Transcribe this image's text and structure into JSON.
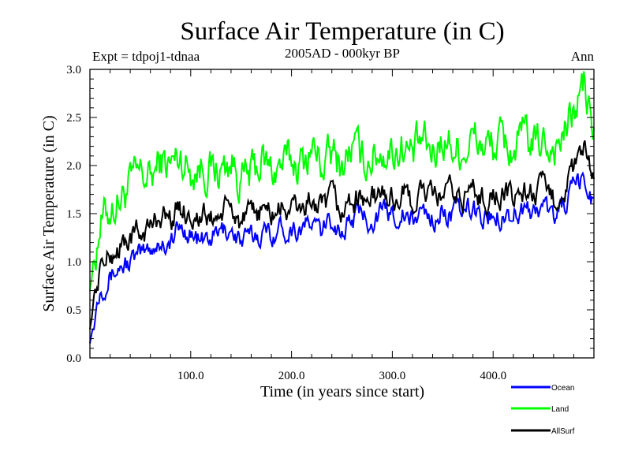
{
  "chart_data": {
    "type": "line",
    "title": "Surface Air Temperature (in C)",
    "subtitle": "2005AD - 000kyr BP",
    "annotation_left": "Expt = tdpoj1-tdnaa",
    "annotation_right": "Ann",
    "xlabel": "Time (in years since start)",
    "ylabel": "Surface Air Temperature (in C)",
    "xlim": [
      0,
      500
    ],
    "ylim": [
      0.0,
      3.0
    ],
    "x_ticks": [
      100,
      200,
      300,
      400
    ],
    "x_tick_labels": [
      "100.0",
      "200.0",
      "300.0",
      "400.0"
    ],
    "y_ticks": [
      0.0,
      0.5,
      1.0,
      1.5,
      2.0,
      2.5,
      3.0
    ],
    "y_tick_labels": [
      "0.0",
      "0.5",
      "1.0",
      "1.5",
      "2.0",
      "2.5",
      "3.0"
    ],
    "grid": false,
    "legend_position": "bottom-right-outside",
    "x": [
      0,
      10,
      20,
      30,
      40,
      50,
      60,
      70,
      80,
      90,
      100,
      110,
      120,
      130,
      140,
      150,
      160,
      170,
      180,
      190,
      200,
      210,
      220,
      230,
      240,
      250,
      260,
      270,
      280,
      290,
      300,
      310,
      320,
      330,
      340,
      350,
      360,
      370,
      380,
      390,
      400,
      410,
      420,
      430,
      440,
      450,
      460,
      470,
      480,
      490,
      500
    ],
    "series": [
      {
        "name": "Ocean",
        "color": "#0000ff",
        "values": [
          0.15,
          0.75,
          0.85,
          0.95,
          1.0,
          1.05,
          1.15,
          1.2,
          1.2,
          1.35,
          1.3,
          1.2,
          1.25,
          1.3,
          1.35,
          1.2,
          1.25,
          1.3,
          1.3,
          1.35,
          1.35,
          1.35,
          1.4,
          1.3,
          1.45,
          1.3,
          1.45,
          1.5,
          1.45,
          1.5,
          1.5,
          1.5,
          1.4,
          1.55,
          1.45,
          1.5,
          1.5,
          1.5,
          1.55,
          1.45,
          1.5,
          1.5,
          1.5,
          1.55,
          1.5,
          1.6,
          1.45,
          1.6,
          1.75,
          1.85,
          1.6
        ]
      },
      {
        "name": "Land",
        "color": "#00ff00",
        "values": [
          0.7,
          1.4,
          1.55,
          1.65,
          1.8,
          1.9,
          1.85,
          2.05,
          2.0,
          2.1,
          1.95,
          2.0,
          1.95,
          1.95,
          2.05,
          1.85,
          1.9,
          2.05,
          1.95,
          2.0,
          2.05,
          2.0,
          2.2,
          2.0,
          2.1,
          2.0,
          2.2,
          2.05,
          2.1,
          2.15,
          2.15,
          2.2,
          2.1,
          2.25,
          2.1,
          2.3,
          2.2,
          2.15,
          2.3,
          2.2,
          2.2,
          2.25,
          2.15,
          2.3,
          2.2,
          2.25,
          2.2,
          2.3,
          2.55,
          2.85,
          2.3
        ]
      },
      {
        "name": "AllSurf",
        "color": "#000000",
        "values": [
          0.3,
          0.95,
          1.05,
          1.15,
          1.25,
          1.3,
          1.35,
          1.5,
          1.45,
          1.55,
          1.5,
          1.45,
          1.45,
          1.5,
          1.55,
          1.4,
          1.45,
          1.55,
          1.5,
          1.55,
          1.55,
          1.55,
          1.65,
          1.5,
          1.65,
          1.5,
          1.65,
          1.65,
          1.65,
          1.7,
          1.65,
          1.7,
          1.6,
          1.75,
          1.65,
          1.7,
          1.7,
          1.65,
          1.75,
          1.65,
          1.7,
          1.7,
          1.65,
          1.75,
          1.7,
          1.75,
          1.65,
          1.75,
          1.95,
          2.15,
          1.8
        ]
      }
    ]
  }
}
